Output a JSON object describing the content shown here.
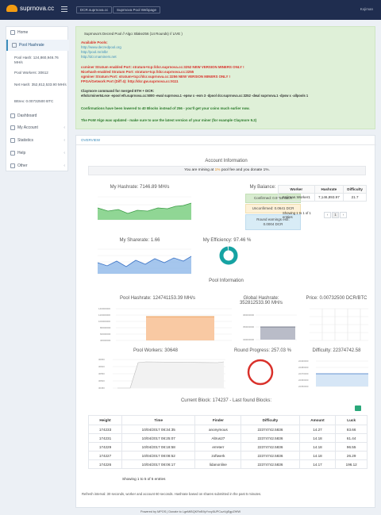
{
  "brand": {
    "name": "suprnova.cc"
  },
  "header": {
    "btn1": "DCR.suprnova.cc",
    "btn2": "Suprnova Pool Webpage",
    "user": "Kojiman"
  },
  "sidebar": {
    "home": "Home",
    "pool_hashrate": "Pool Hashrate",
    "pool_hash": "Pool Hash: 124,860,946.76 MH/s",
    "pool_workers": "Pool Workers: 30612",
    "net_hash": "Net Hash: 352,812,533.90 MH/s",
    "btc": "Bttrex: 0.00732500 BTC",
    "dashboard": "Dashboard",
    "my_account": "My Account",
    "statistics": "Statistics",
    "help": "Help",
    "other": "Other"
  },
  "alert": {
    "title": "Suprnova's Decred Pool // Algo: Blake256 (14 Rounds) // LIVE )",
    "available_pools": "Available Pools:",
    "pool1": "http://www.decredpool.org",
    "pool2": "http://pool.mrinlbr",
    "pool3": "http://dcr.maminers.net",
    "ccminer": "ccminer Stratum enabled Port: stratum+tcp://dcr.suprnova.cc:3252 NEW VERSION MINERS ONLY !",
    "nicehash": "Nicehash-enabled Stratum Port: stratum+tcp://dcr.suprnova.cc:2255",
    "sgminer": "sgminer Stratum Port: stratum+tcp://dcr.suprnova.cc:3256 NEW VERSION MINERS ONLY !",
    "fpga": "FPGA/Getwork Port (Diff 4): http://dcr.gw.suprnova.cc:9111",
    "claymore_title": "Claymore command for merged ETH + DCR:",
    "claymore_cmd": "ethdcrminer64.exe -epool eth.suprnova.cc:5000 -ewal suprnova.1 -epsw x -esm 3 -dpool dcr.suprnova.cc:3252 -dwal suprnova.1 -dpsw x -allpools 1",
    "confirmations": "Confirmations have been lowered to 40 Blocks instead of 256 - you'll get your coins much earlier now.",
    "pow": "The PoW Algo was updated - make sure to use the latest version of your miner (for example Claymore 9.2)"
  },
  "tabs": {
    "overview": "OVERVIEW"
  },
  "account": {
    "section_title": "Account Information",
    "mining_prefix": "You are mining at ",
    "mining_fee": "1%",
    "mining_suffix": " pool fee and you donate 1%.",
    "hashrate_title": "My Hashrate: 7146.89 MH/s",
    "balance_title": "My Balance:",
    "confirmed": "Confirmed: 0.9758 DCR",
    "unconfirmed": "Unconfirmed: 0.0641 DCR",
    "round_earnings": "Round earnings estí:",
    "round_value": "0.0004 DCR",
    "sharerate_title": "My Sharerate: 1.66",
    "efficiency_title": "My Efficiency: 97.46 %",
    "efficiency": 97.46
  },
  "workers_table": {
    "headers": [
      "Worker",
      "Hashrate",
      "Difficulty"
    ],
    "rows": [
      [
        "Kojiman.Worker1",
        "7,146,893.97",
        "21.7"
      ]
    ],
    "showing": "Showing 1 to 1 of 1 entries",
    "pages": [
      "‹",
      "1",
      "›"
    ]
  },
  "pool": {
    "section_title": "Pool Information",
    "hashrate_title": "Pool Hashrate: 124741153.39 MH/s",
    "global_title": "Global Hashrate: 352812533.90 MH/s",
    "price_title": "Price: 0.00732500 DCR/BTC",
    "workers_title": "Pool Workers: 30648",
    "round_title": "Round Progress: 257.03 %",
    "difficulty_title": "Difficulty: 22374742.58",
    "blocks_title": "Current Block: 174237 - Last found Blocks:"
  },
  "blocks_table": {
    "headers": [
      "Height",
      "Time",
      "Finder",
      "Difficulty",
      "Amount",
      "Luck"
    ],
    "rows": [
      [
        "174233",
        "10/04/2017 08:34:35",
        "anonymous",
        "22374742.5836",
        "14.27",
        "83.66"
      ],
      [
        "174231",
        "10/04/2017 08:25:07",
        "Altrus27",
        "22374742.5836",
        "14.18",
        "61.44"
      ],
      [
        "174229",
        "10/04/2017 08:18:58",
        "erreterr",
        "22374742.5836",
        "14.18",
        "96.55"
      ],
      [
        "174227",
        "10/04/2017 08:08:52",
        "zoftwerk",
        "22374742.5836",
        "14.18",
        "26.29"
      ],
      [
        "174226",
        "10/04/2017 08:06:17",
        "lidanonline",
        "22374742.5836",
        "14.17",
        "196.12"
      ]
    ],
    "showing": "Showing 1 to 5 of 5 entries"
  },
  "footer": {
    "note": "Refresh interval: 30 seconds, worker and account 60 seconds. Hashrate based on shares submitted in the past 5 minutes.",
    "bottom": "Powered by MPOS | Donate to LgeMiBQKRnB9yYxvy5UPCuzVgEgpZHfW"
  },
  "colors": {
    "accent": "#3c8dbc",
    "topbar": "#1f2d4f",
    "alert_bg": "#dff0d8",
    "danger": "#d9312b",
    "teal": "#16a3a3",
    "orange": "#f39c12"
  }
}
